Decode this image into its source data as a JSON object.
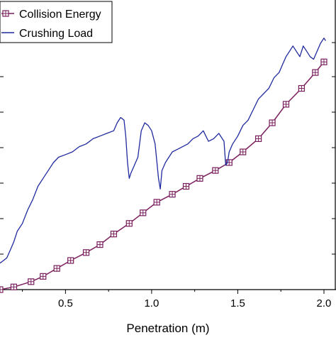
{
  "chart_data": {
    "type": "line",
    "xlabel": "Penetration (m)",
    "ylabel": "",
    "xlim": [
      0.12,
      2.07
    ],
    "ylim": [
      0,
      1
    ],
    "xticks": [
      "0.5",
      "1.0",
      "1.5",
      "2.0"
    ],
    "xtick_values": [
      0.5,
      1.0,
      1.5,
      2.0
    ],
    "grid": false,
    "legend_position": "top-left",
    "series": [
      {
        "name": "Collision Energy",
        "color": "#7a1f5c",
        "marker": "square-plus",
        "x": [
          0.12,
          0.2,
          0.3,
          0.37,
          0.45,
          0.53,
          0.62,
          0.7,
          0.78,
          0.87,
          0.95,
          1.03,
          1.12,
          1.2,
          1.28,
          1.37,
          1.45,
          1.53,
          1.62,
          1.7,
          1.78,
          1.87,
          1.95,
          2.0
        ],
        "y": [
          0.0,
          0.01,
          0.03,
          0.05,
          0.08,
          0.11,
          0.14,
          0.17,
          0.21,
          0.25,
          0.29,
          0.33,
          0.36,
          0.39,
          0.42,
          0.45,
          0.48,
          0.52,
          0.57,
          0.63,
          0.7,
          0.76,
          0.82,
          0.86
        ]
      },
      {
        "name": "Crushing Load",
        "color": "#1f2a9e",
        "marker": "none",
        "x": [
          0.12,
          0.14,
          0.16,
          0.18,
          0.2,
          0.22,
          0.25,
          0.28,
          0.31,
          0.34,
          0.37,
          0.4,
          0.43,
          0.46,
          0.5,
          0.54,
          0.58,
          0.62,
          0.66,
          0.7,
          0.74,
          0.78,
          0.8,
          0.82,
          0.84,
          0.85,
          0.86,
          0.87,
          0.88,
          0.9,
          0.92,
          0.94,
          0.96,
          0.98,
          1.0,
          1.02,
          1.04,
          1.05,
          1.06,
          1.08,
          1.1,
          1.12,
          1.15,
          1.18,
          1.21,
          1.24,
          1.27,
          1.3,
          1.33,
          1.36,
          1.39,
          1.42,
          1.43,
          1.44,
          1.45,
          1.47,
          1.5,
          1.53,
          1.56,
          1.59,
          1.62,
          1.65,
          1.68,
          1.71,
          1.74,
          1.76,
          1.78,
          1.8,
          1.82,
          1.84,
          1.86,
          1.88,
          1.9,
          1.92,
          1.94,
          1.96,
          1.98,
          2.0,
          2.01
        ],
        "y": [
          0.1,
          0.11,
          0.12,
          0.15,
          0.18,
          0.22,
          0.25,
          0.3,
          0.34,
          0.39,
          0.42,
          0.45,
          0.48,
          0.5,
          0.51,
          0.52,
          0.54,
          0.55,
          0.57,
          0.58,
          0.59,
          0.6,
          0.63,
          0.65,
          0.64,
          0.58,
          0.48,
          0.42,
          0.44,
          0.47,
          0.5,
          0.6,
          0.63,
          0.62,
          0.6,
          0.55,
          0.42,
          0.38,
          0.45,
          0.48,
          0.5,
          0.52,
          0.53,
          0.54,
          0.55,
          0.57,
          0.58,
          0.6,
          0.56,
          0.57,
          0.59,
          0.56,
          0.47,
          0.48,
          0.52,
          0.55,
          0.58,
          0.62,
          0.64,
          0.68,
          0.72,
          0.74,
          0.76,
          0.8,
          0.82,
          0.85,
          0.88,
          0.9,
          0.92,
          0.9,
          0.88,
          0.92,
          0.9,
          0.88,
          0.87,
          0.9,
          0.93,
          0.95,
          0.94
        ]
      }
    ]
  }
}
